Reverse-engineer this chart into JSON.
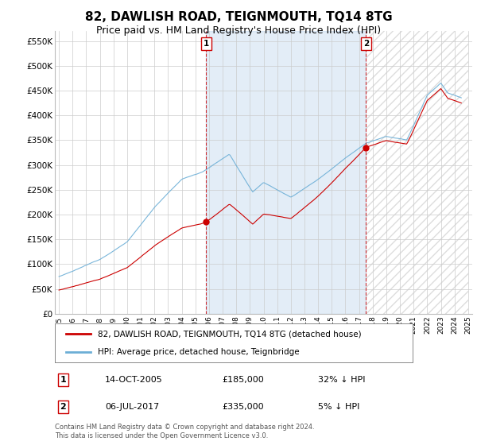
{
  "title": "82, DAWLISH ROAD, TEIGNMOUTH, TQ14 8TG",
  "subtitle": "Price paid vs. HM Land Registry's House Price Index (HPI)",
  "title_fontsize": 11,
  "subtitle_fontsize": 9,
  "ylabel_ticks": [
    "£0",
    "£50K",
    "£100K",
    "£150K",
    "£200K",
    "£250K",
    "£300K",
    "£350K",
    "£400K",
    "£450K",
    "£500K",
    "£550K"
  ],
  "ytick_vals": [
    0,
    50000,
    100000,
    150000,
    200000,
    250000,
    300000,
    350000,
    400000,
    450000,
    500000,
    550000
  ],
  "ylim": [
    0,
    570000
  ],
  "hpi_color": "#6baed6",
  "sold_color": "#cc0000",
  "dashed_line_color": "#cc0000",
  "background_color": "#ffffff",
  "grid_color": "#cccccc",
  "shade_color": "#ddeeff",
  "hatch_color": "#cccccc",
  "legend_label_sold": "82, DAWLISH ROAD, TEIGNMOUTH, TQ14 8TG (detached house)",
  "legend_label_hpi": "HPI: Average price, detached house, Teignbridge",
  "transaction1_label": "1",
  "transaction1_date": "14-OCT-2005",
  "transaction1_price": "£185,000",
  "transaction1_pct": "32% ↓ HPI",
  "transaction2_label": "2",
  "transaction2_date": "06-JUL-2017",
  "transaction2_price": "£335,000",
  "transaction2_pct": "5% ↓ HPI",
  "footer": "Contains HM Land Registry data © Crown copyright and database right 2024.\nThis data is licensed under the Open Government Licence v3.0.",
  "marker1_year": 2005.79,
  "marker1_price": 185000,
  "marker2_year": 2017.51,
  "marker2_price": 335000,
  "xmin": 1995,
  "xmax": 2025
}
